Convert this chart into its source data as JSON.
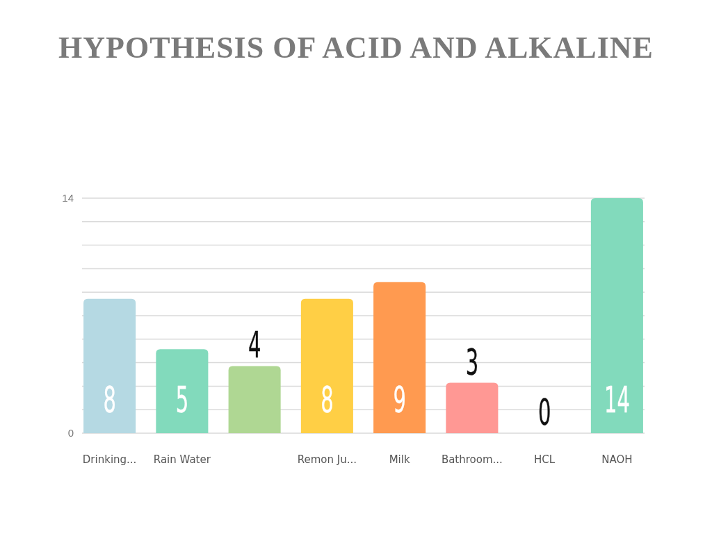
{
  "chart_data": {
    "type": "bar",
    "title": "HYPOTHESIS OF ACID AND ALKALINE",
    "categories": [
      "Drinking...",
      "Rain Water",
      null,
      "Remon Ju...",
      "Milk",
      "Bathroom...",
      "HCL",
      "NAOH"
    ],
    "values": [
      8,
      5,
      4,
      8,
      9,
      3,
      0,
      14
    ],
    "colors": [
      "#b5d9e3",
      "#82dabc",
      "#afd793",
      "#ffcf45",
      "#ff9a50",
      "#ff9894",
      "#cccccc",
      "#82dabc"
    ],
    "ylim": [
      0,
      14
    ],
    "yticks": [
      0,
      {
        "value": 1.4,
        "label": null
      },
      {
        "value": 2.8,
        "label": null
      },
      {
        "value": 4.2,
        "label": null
      },
      {
        "value": 5.6,
        "label": null
      },
      {
        "value": 7,
        "label": null
      },
      {
        "value": 8.4,
        "label": null
      },
      {
        "value": 9.8,
        "label": null
      },
      {
        "value": 11.2,
        "label": null
      },
      {
        "value": 12.6,
        "label": null
      },
      14
    ],
    "grid": "y",
    "data_labels": true
  }
}
